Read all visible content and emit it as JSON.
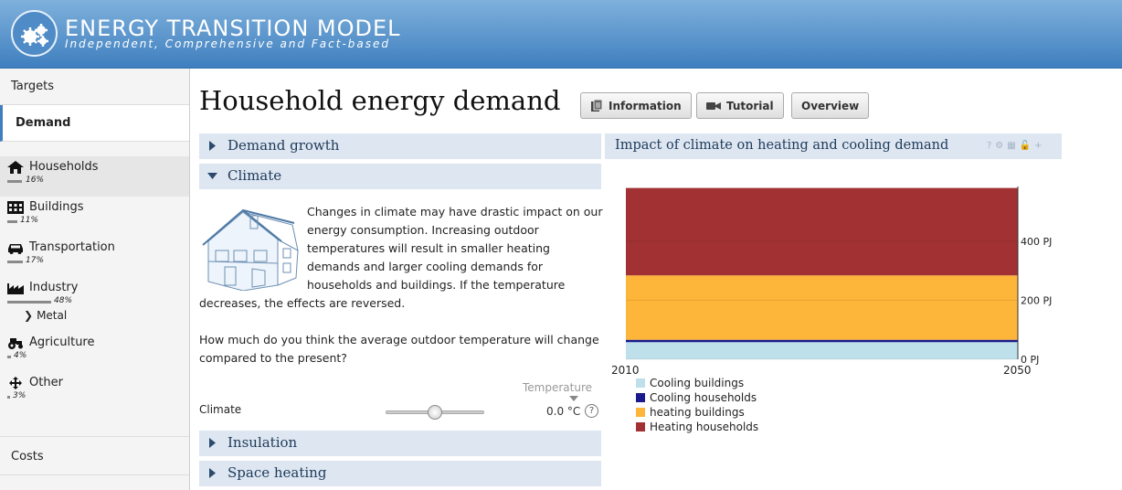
{
  "header": {
    "title": "ENERGY TRANSITION MODEL",
    "subtitle": "Independent, Comprehensive and Fact-based",
    "logo_icon": "gears-icon"
  },
  "sidebar": {
    "targets": "Targets",
    "demand": "Demand",
    "items": [
      {
        "label": "Households",
        "pct": "16%",
        "value": 16,
        "icon": "house-icon"
      },
      {
        "label": "Buildings",
        "pct": "11%",
        "value": 11,
        "icon": "building-icon"
      },
      {
        "label": "Transportation",
        "pct": "17%",
        "value": 17,
        "icon": "car-icon"
      },
      {
        "label": "Industry",
        "pct": "48%",
        "value": 48,
        "icon": "factory-icon"
      },
      {
        "label": "Agriculture",
        "pct": "4%",
        "value": 4,
        "icon": "tractor-icon"
      },
      {
        "label": "Other",
        "pct": "3%",
        "value": 3,
        "icon": "move-arrows-icon"
      }
    ],
    "sub_item": "Metal",
    "costs": "Costs"
  },
  "main": {
    "title": "Household energy demand",
    "buttons": {
      "information": "Information",
      "tutorial": "Tutorial",
      "overview": "Overview"
    },
    "sections": {
      "demand_growth": "Demand growth",
      "climate": "Climate",
      "insulation": "Insulation",
      "space_heating": "Space heating"
    },
    "description": "Changes in climate may have drastic impact on our energy consumption. Increasing outdoor temperatures will result in smaller heating demands and larger cooling demands for households and buildings. If the temperature decreases, the effects are reversed.",
    "question": "How much do you think the average outdoor temperature will change compared to the present?",
    "slider": {
      "label": "Climate",
      "unit_header": "Temperature",
      "value": "0.0 °C"
    }
  },
  "chart": {
    "title": "Impact of climate on heating and cooling demand",
    "tools": "?⚙▦🔓+"
  },
  "chart_data": {
    "type": "area",
    "x": [
      "2010",
      "2050"
    ],
    "ylim": [
      0,
      585
    ],
    "y_ticks": [
      "0 PJ",
      "200 PJ",
      "400 PJ"
    ],
    "y_tick_values": [
      0,
      200,
      400
    ],
    "stacked": true,
    "series": [
      {
        "name": "Cooling buildings",
        "values": [
          58,
          58
        ],
        "color": "#bde0ea"
      },
      {
        "name": "Cooling households",
        "values": [
          8,
          8
        ],
        "color": "#1a1a8c"
      },
      {
        "name": "heating buildings",
        "values": [
          218,
          218
        ],
        "color": "#fdb53a"
      },
      {
        "name": "Heating households",
        "values": [
          296,
          296
        ],
        "color": "#a13133"
      }
    ]
  }
}
